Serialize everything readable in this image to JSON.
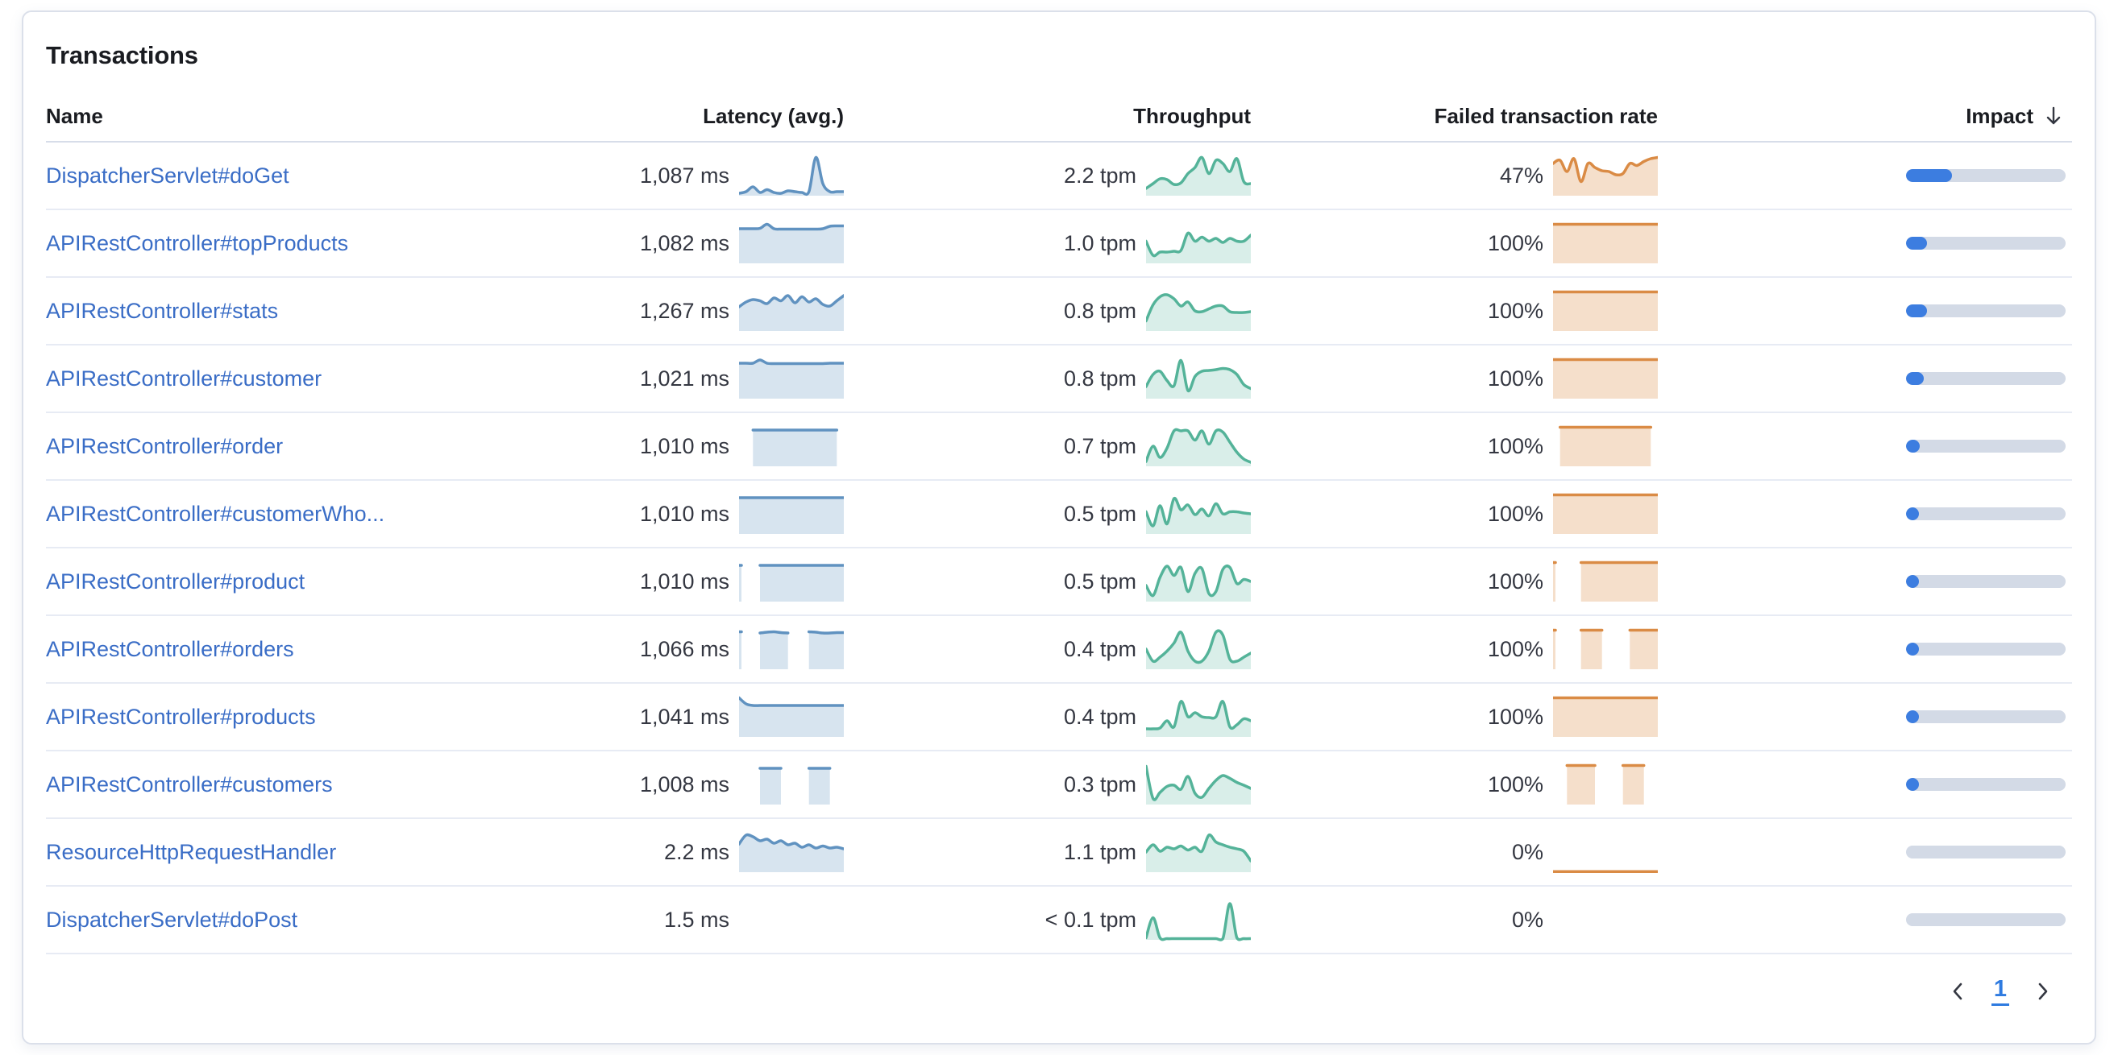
{
  "panel": {
    "title": "Transactions"
  },
  "colors": {
    "latency_line": "#6092c0",
    "latency_fill": "rgba(96,146,192,0.25)",
    "throughput_line": "#54b399",
    "throughput_fill": "rgba(84,179,153,0.22)",
    "failed_line": "#da8b45",
    "failed_fill": "rgba(218,139,69,0.28)",
    "impact_fill": "#3c7de0",
    "impact_track": "#d3dae6",
    "link": "#3a6dc6",
    "page_active": "#2f7be0"
  },
  "table": {
    "columns": {
      "name": "Name",
      "latency": "Latency (avg.)",
      "throughput": "Throughput",
      "failed": "Failed transaction rate",
      "impact": "Impact"
    },
    "sort": {
      "column": "impact",
      "direction": "descending"
    },
    "rows": [
      {
        "name": "DispatcherServlet#doGet",
        "latency": "1,087 ms",
        "throughput": "2.2 tpm",
        "failed_rate": "47%",
        "impact_pct": 29,
        "latency_spark": [
          0.06,
          0.1,
          0.22,
          0.08,
          0.15,
          0.08,
          0.06,
          0.12,
          0.1,
          0.08,
          0.1,
          0.95,
          0.3,
          0.1,
          0.1,
          0.1
        ],
        "throughput_spark": [
          0.18,
          0.3,
          0.42,
          0.4,
          0.28,
          0.32,
          0.55,
          0.7,
          0.95,
          0.55,
          0.88,
          0.8,
          0.6,
          0.92,
          0.35,
          0.3
        ],
        "failed_spark": [
          0.8,
          0.88,
          0.6,
          0.92,
          0.35,
          0.8,
          0.7,
          0.62,
          0.6,
          0.52,
          0.55,
          0.8,
          0.75,
          0.85,
          0.92,
          0.95
        ]
      },
      {
        "name": "APIRestController#topProducts",
        "latency": "1,082 ms",
        "throughput": "1.0 tpm",
        "failed_rate": "100%",
        "impact_pct": 13,
        "latency_spark": [
          0.86,
          0.86,
          0.86,
          0.87,
          0.97,
          0.86,
          0.85,
          0.85,
          0.85,
          0.85,
          0.85,
          0.85,
          0.86,
          0.92,
          0.93,
          0.93
        ],
        "throughput_spark": [
          0.55,
          0.2,
          0.28,
          0.28,
          0.3,
          0.32,
          0.75,
          0.55,
          0.65,
          0.55,
          0.62,
          0.52,
          0.62,
          0.55,
          0.55,
          0.7
        ],
        "failed_spark": [
          0.97,
          0.97,
          0.97,
          0.97,
          0.97,
          0.97,
          0.97,
          0.97,
          0.97,
          0.97,
          0.97,
          0.97,
          0.97,
          0.97,
          0.97,
          0.97
        ]
      },
      {
        "name": "APIRestController#stats",
        "latency": "1,267 ms",
        "throughput": "0.8 tpm",
        "failed_rate": "100%",
        "impact_pct": 13,
        "latency_spark": [
          0.6,
          0.72,
          0.78,
          0.75,
          0.68,
          0.82,
          0.75,
          0.88,
          0.7,
          0.85,
          0.72,
          0.8,
          0.66,
          0.62,
          0.75,
          0.88
        ],
        "throughput_spark": [
          0.25,
          0.65,
          0.85,
          0.9,
          0.8,
          0.62,
          0.72,
          0.5,
          0.48,
          0.55,
          0.62,
          0.62,
          0.48,
          0.46,
          0.46,
          0.48
        ],
        "failed_spark": [
          0.97,
          0.97,
          0.97,
          0.97,
          0.97,
          0.97,
          0.97,
          0.97,
          0.97,
          0.97,
          0.97,
          0.97,
          0.97,
          0.97,
          0.97,
          0.97
        ]
      },
      {
        "name": "APIRestController#customer",
        "latency": "1,021 ms",
        "throughput": "0.8 tpm",
        "failed_rate": "100%",
        "impact_pct": 11,
        "latency_spark": [
          0.88,
          0.88,
          0.88,
          0.96,
          0.88,
          0.87,
          0.87,
          0.87,
          0.87,
          0.87,
          0.87,
          0.87,
          0.87,
          0.88,
          0.88,
          0.88
        ],
        "throughput_spark": [
          0.3,
          0.6,
          0.68,
          0.45,
          0.32,
          0.95,
          0.2,
          0.55,
          0.68,
          0.7,
          0.72,
          0.75,
          0.72,
          0.6,
          0.35,
          0.25
        ],
        "failed_spark": [
          0.97,
          0.97,
          0.97,
          0.97,
          0.97,
          0.97,
          0.97,
          0.97,
          0.97,
          0.97,
          0.97,
          0.97,
          0.97,
          0.97,
          0.97,
          0.97
        ]
      },
      {
        "name": "APIRestController#order",
        "latency": "1,010 ms",
        "throughput": "0.7 tpm",
        "failed_rate": "100%",
        "impact_pct": 8.5,
        "latency_spark": [
          null,
          null,
          0.9,
          0.9,
          0.9,
          0.9,
          0.9,
          0.9,
          0.9,
          0.9,
          0.9,
          0.9,
          0.9,
          0.9,
          0.9,
          null
        ],
        "throughput_spark": [
          0.12,
          0.5,
          0.22,
          0.45,
          0.88,
          0.88,
          0.88,
          0.65,
          0.88,
          0.55,
          0.88,
          0.85,
          0.6,
          0.35,
          0.18,
          0.1
        ],
        "failed_spark": [
          null,
          0.97,
          0.97,
          0.97,
          0.97,
          0.97,
          0.97,
          0.97,
          0.97,
          0.97,
          0.97,
          0.97,
          0.97,
          0.97,
          0.97,
          null
        ]
      },
      {
        "name": "APIRestController#customerWho...",
        "latency": "1,010 ms",
        "throughput": "0.5 tpm",
        "failed_rate": "100%",
        "impact_pct": 7.5,
        "latency_spark": [
          0.9,
          0.9,
          0.9,
          0.9,
          0.9,
          0.9,
          0.9,
          0.9,
          0.9,
          0.9,
          0.9,
          0.9,
          0.9,
          0.9,
          0.9,
          0.9
        ],
        "throughput_spark": [
          0.55,
          0.2,
          0.7,
          0.25,
          0.88,
          0.6,
          0.72,
          0.48,
          0.62,
          0.45,
          0.75,
          0.5,
          0.55,
          0.55,
          0.52,
          0.5
        ],
        "failed_spark": [
          0.97,
          0.97,
          0.97,
          0.97,
          0.97,
          0.97,
          0.97,
          0.97,
          0.97,
          0.97,
          0.97,
          0.97,
          0.97,
          0.97,
          0.97,
          0.97
        ]
      },
      {
        "name": "APIRestController#product",
        "latency": "1,010 ms",
        "throughput": "0.5 tpm",
        "failed_rate": "100%",
        "impact_pct": 7,
        "latency_spark": [
          0.9,
          null,
          null,
          0.9,
          0.9,
          0.9,
          0.9,
          0.9,
          0.9,
          0.9,
          0.9,
          0.9,
          0.9,
          0.9,
          0.9,
          0.9
        ],
        "throughput_spark": [
          0.4,
          0.15,
          0.6,
          0.88,
          0.65,
          0.85,
          0.25,
          0.7,
          0.82,
          0.2,
          0.25,
          0.8,
          0.85,
          0.45,
          0.55,
          0.5
        ],
        "failed_spark": [
          0.97,
          null,
          null,
          null,
          0.97,
          0.97,
          0.97,
          0.97,
          0.97,
          0.97,
          0.97,
          0.97,
          0.97,
          0.97,
          0.97,
          0.97
        ]
      },
      {
        "name": "APIRestController#orders",
        "latency": "1,066 ms",
        "throughput": "0.4 tpm",
        "failed_rate": "100%",
        "impact_pct": 6.5,
        "latency_spark": [
          0.93,
          null,
          null,
          0.9,
          0.92,
          0.93,
          0.91,
          0.9,
          null,
          null,
          0.93,
          0.92,
          0.9,
          0.9,
          0.91,
          0.91
        ],
        "throughput_spark": [
          0.5,
          0.2,
          0.3,
          0.45,
          0.65,
          0.92,
          0.45,
          0.2,
          0.2,
          0.45,
          0.92,
          0.85,
          0.25,
          0.2,
          0.3,
          0.4
        ],
        "failed_spark": [
          0.97,
          null,
          null,
          null,
          0.97,
          0.97,
          0.97,
          0.97,
          null,
          null,
          null,
          0.97,
          0.97,
          0.97,
          0.97,
          0.97
        ]
      },
      {
        "name": "APIRestController#products",
        "latency": "1,041 ms",
        "throughput": "0.4 tpm",
        "failed_rate": "100%",
        "impact_pct": 6,
        "latency_spark": [
          0.97,
          0.82,
          0.78,
          0.78,
          0.78,
          0.78,
          0.78,
          0.78,
          0.78,
          0.78,
          0.78,
          0.78,
          0.78,
          0.78,
          0.78,
          0.78
        ],
        "throughput_spark": [
          0.2,
          0.2,
          0.22,
          0.4,
          0.25,
          0.88,
          0.5,
          0.6,
          0.5,
          0.48,
          0.5,
          0.88,
          0.25,
          0.3,
          0.45,
          0.4
        ],
        "failed_spark": [
          0.97,
          0.97,
          0.97,
          0.97,
          0.97,
          0.97,
          0.97,
          0.97,
          0.97,
          0.97,
          0.97,
          0.97,
          0.97,
          0.97,
          0.97,
          0.97
        ]
      },
      {
        "name": "APIRestController#customers",
        "latency": "1,008 ms",
        "throughput": "0.3 tpm",
        "failed_rate": "100%",
        "impact_pct": 5.5,
        "latency_spark": [
          null,
          null,
          null,
          0.9,
          0.9,
          0.9,
          0.9,
          null,
          null,
          null,
          0.9,
          0.9,
          0.9,
          0.9,
          null,
          null
        ],
        "throughput_spark": [
          0.95,
          0.15,
          0.3,
          0.45,
          0.48,
          0.38,
          0.7,
          0.28,
          0.18,
          0.4,
          0.6,
          0.72,
          0.65,
          0.55,
          0.48,
          0.4
        ],
        "failed_spark": [
          null,
          null,
          0.97,
          0.97,
          0.97,
          0.97,
          0.97,
          null,
          null,
          null,
          0.97,
          0.97,
          0.97,
          0.97,
          null,
          null
        ]
      },
      {
        "name": "ResourceHttpRequestHandler",
        "latency": "2.2 ms",
        "throughput": "1.1 tpm",
        "failed_rate": "0%",
        "impact_pct": 0,
        "latency_spark": [
          0.7,
          0.92,
          0.88,
          0.78,
          0.82,
          0.72,
          0.78,
          0.68,
          0.72,
          0.62,
          0.68,
          0.6,
          0.65,
          0.6,
          0.62,
          0.58
        ],
        "throughput_spark": [
          0.5,
          0.68,
          0.52,
          0.62,
          0.58,
          0.65,
          0.55,
          0.62,
          0.52,
          0.92,
          0.75,
          0.68,
          0.62,
          0.58,
          0.52,
          0.28
        ],
        "failed_spark": [
          0.015,
          0.015,
          0.015,
          0.015,
          0.015,
          0.015,
          0.015,
          0.015,
          0.015,
          0.015,
          0.015,
          0.015,
          0.015,
          0.015,
          0.015,
          0.015
        ]
      },
      {
        "name": "DispatcherServlet#doPost",
        "latency": "1.5 ms",
        "throughput": "< 0.1 tpm",
        "failed_rate": "0%",
        "impact_pct": 0,
        "latency_spark": null,
        "throughput_spark": [
          0.05,
          0.55,
          0.05,
          0.03,
          0.03,
          0.03,
          0.03,
          0.03,
          0.03,
          0.03,
          0.03,
          0.03,
          0.9,
          0.05,
          0.03,
          0.03
        ],
        "failed_spark": null
      }
    ]
  },
  "pagination": {
    "current_page": "1"
  }
}
